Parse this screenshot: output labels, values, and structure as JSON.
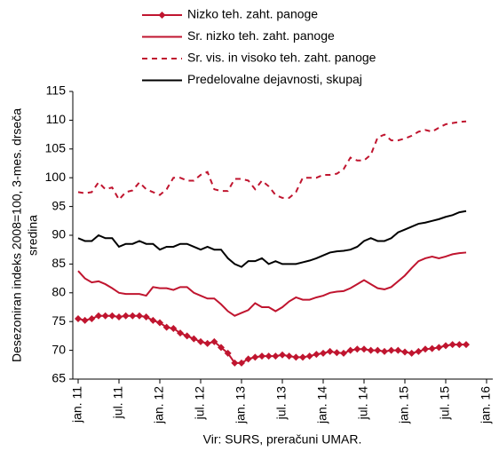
{
  "chart_data": {
    "type": "line",
    "y_label": [
      "Desezoniran indeks 2008=100, 3-mes. drseča",
      "sredina"
    ],
    "source": "Vir: SURS, preračuni UMAR.",
    "categories": [
      "jan. 11",
      null,
      null,
      null,
      null,
      null,
      "jul. 11",
      null,
      null,
      null,
      null,
      null,
      "jan. 12",
      null,
      null,
      null,
      null,
      null,
      "jul. 12",
      null,
      null,
      null,
      null,
      null,
      "jan. 13",
      null,
      null,
      null,
      null,
      null,
      "jul. 13",
      null,
      null,
      null,
      null,
      null,
      "jan. 14",
      null,
      null,
      null,
      null,
      null,
      "jul. 14",
      null,
      null,
      null,
      null,
      null,
      "jan. 15",
      null,
      null,
      null,
      null,
      null,
      "jul. 15",
      null,
      null,
      null,
      null,
      null,
      "jan. 16"
    ],
    "ylim": [
      65,
      115
    ],
    "yticks": [
      65,
      70,
      75,
      80,
      85,
      90,
      95,
      100,
      105,
      110,
      115
    ],
    "grid": false,
    "series": [
      {
        "name": "Nizko teh. zaht. panoge",
        "color": "#c0152f",
        "dash": "solid",
        "marker": "diamond",
        "values": [
          75.5,
          75.2,
          75.5,
          76,
          76,
          76,
          75.8,
          76,
          76,
          76,
          75.8,
          75.2,
          74.8,
          74,
          73.8,
          73,
          72.5,
          72,
          71.5,
          71.2,
          71.5,
          70.5,
          69.5,
          67.8,
          67.8,
          68.5,
          68.8,
          69,
          69,
          69,
          69.2,
          69,
          68.8,
          68.8,
          69,
          69.3,
          69.5,
          69.8,
          69.6,
          69.5,
          70,
          70.2,
          70.2,
          70,
          70,
          69.8,
          70,
          70,
          69.7,
          69.5,
          69.8,
          70.2,
          70.3,
          70.5,
          70.8,
          71,
          71,
          71,
          null,
          null,
          null
        ]
      },
      {
        "name": "Sr. nizko teh. zaht. panoge",
        "color": "#c0152f",
        "dash": "solid",
        "values": [
          83.8,
          82.5,
          81.8,
          82,
          81.5,
          80.8,
          80,
          79.8,
          79.8,
          79.8,
          79.5,
          81,
          80.8,
          80.8,
          80.5,
          81,
          81,
          80,
          79.5,
          79,
          79,
          78,
          76.8,
          76,
          76.5,
          77,
          78.2,
          77.5,
          77.5,
          76.8,
          77.5,
          78.5,
          79.2,
          78.8,
          78.8,
          79.2,
          79.5,
          80,
          80.2,
          80.3,
          80.8,
          81.5,
          82.2,
          81.5,
          80.8,
          80.6,
          81,
          82,
          83,
          84.3,
          85.5,
          86,
          86.3,
          86,
          86.3,
          86.7,
          86.9,
          87,
          null,
          null,
          null
        ]
      },
      {
        "name": "Sr. vis. in visoko teh. zaht. panoge",
        "color": "#c0152f",
        "dash": "dashed",
        "values": [
          97.5,
          97.3,
          97.5,
          99.2,
          98,
          98.3,
          96.2,
          97.5,
          97.8,
          99.2,
          98,
          97.5,
          97,
          98,
          100,
          100,
          99.5,
          99.5,
          100.5,
          101,
          98,
          97.7,
          97.7,
          99.8,
          99.8,
          99.5,
          98,
          99.5,
          98.5,
          97,
          96.5,
          96.5,
          97.5,
          100,
          100,
          100,
          100.5,
          100.5,
          100.7,
          101.5,
          103.5,
          103,
          103,
          104,
          107,
          107.5,
          106.5,
          106.5,
          106.8,
          107.3,
          108,
          108.3,
          108,
          108.7,
          109.3,
          109.5,
          109.7,
          109.8,
          null,
          null,
          null
        ]
      },
      {
        "name": "Predelovalne dejavnosti, skupaj",
        "color": "#000000",
        "dash": "solid",
        "values": [
          89.5,
          89,
          89,
          90,
          89.5,
          89.5,
          88,
          88.5,
          88.5,
          89,
          88.5,
          88.5,
          87.5,
          88,
          88,
          88.5,
          88.5,
          88,
          87.5,
          88,
          87.5,
          87.5,
          86,
          85,
          84.5,
          85.5,
          85.5,
          86,
          85,
          85.5,
          85,
          85,
          85,
          85.3,
          85.6,
          86,
          86.5,
          87,
          87.2,
          87.3,
          87.5,
          88,
          89,
          89.5,
          89,
          89,
          89.5,
          90.5,
          91,
          91.5,
          92,
          92.2,
          92.5,
          92.8,
          93.2,
          93.5,
          94,
          94.2,
          null,
          null,
          null
        ]
      }
    ]
  }
}
